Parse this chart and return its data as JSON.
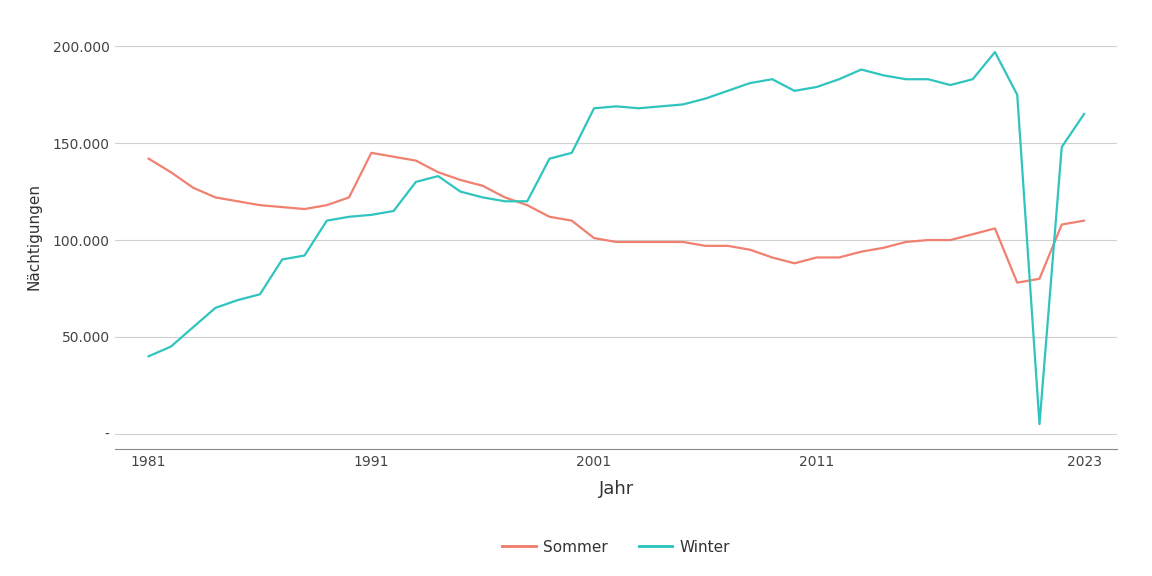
{
  "sommer_years": [
    1981,
    1982,
    1983,
    1984,
    1985,
    1986,
    1987,
    1988,
    1989,
    1990,
    1991,
    1992,
    1993,
    1994,
    1995,
    1996,
    1997,
    1998,
    1999,
    2000,
    2001,
    2002,
    2003,
    2004,
    2005,
    2006,
    2007,
    2008,
    2009,
    2010,
    2011,
    2012,
    2013,
    2014,
    2015,
    2016,
    2017,
    2018,
    2019,
    2020,
    2021,
    2022,
    2023
  ],
  "sommer_values": [
    142000,
    135000,
    127000,
    122000,
    120000,
    118000,
    117000,
    116000,
    118000,
    122000,
    145000,
    143000,
    141000,
    135000,
    131000,
    128000,
    122000,
    118000,
    112000,
    110000,
    101000,
    99000,
    99000,
    99000,
    99000,
    97000,
    97000,
    95000,
    91000,
    88000,
    91000,
    91000,
    94000,
    96000,
    99000,
    100000,
    100000,
    103000,
    106000,
    78000,
    80000,
    108000,
    110000
  ],
  "winter_years": [
    1981,
    1982,
    1983,
    1984,
    1985,
    1986,
    1987,
    1988,
    1989,
    1990,
    1991,
    1992,
    1993,
    1994,
    1995,
    1996,
    1997,
    1998,
    1999,
    2000,
    2001,
    2002,
    2003,
    2004,
    2005,
    2006,
    2007,
    2008,
    2009,
    2010,
    2011,
    2012,
    2013,
    2014,
    2015,
    2016,
    2017,
    2018,
    2019,
    2020,
    2021,
    2022,
    2023
  ],
  "winter_values": [
    40000,
    45000,
    55000,
    65000,
    69000,
    72000,
    90000,
    92000,
    110000,
    112000,
    113000,
    115000,
    130000,
    133000,
    125000,
    122000,
    120000,
    120000,
    142000,
    145000,
    168000,
    169000,
    168000,
    169000,
    170000,
    173000,
    177000,
    181000,
    183000,
    177000,
    179000,
    183000,
    188000,
    185000,
    183000,
    183000,
    180000,
    183000,
    197000,
    175000,
    5000,
    148000,
    165000
  ],
  "sommer_color": "#F08070",
  "winter_color": "#30C4BE",
  "xlabel": "Jahr",
  "ylabel": "Nächtigungen",
  "ylim": [
    -8000,
    212000
  ],
  "xlim": [
    1979.5,
    2024.5
  ],
  "xticks": [
    1981,
    1991,
    2001,
    2011,
    2023
  ],
  "yticks": [
    0,
    50000,
    100000,
    150000,
    200000
  ],
  "ytick_labels": [
    "-",
    "50.000",
    "100.000",
    "150.000",
    "200.000"
  ],
  "legend_labels": [
    "Sommer",
    "Winter"
  ],
  "background_color": "#ffffff",
  "grid_color": "#d0d0d0",
  "line_width": 1.6,
  "xlabel_fontsize": 13,
  "ylabel_fontsize": 11,
  "tick_fontsize": 10,
  "legend_fontsize": 11
}
